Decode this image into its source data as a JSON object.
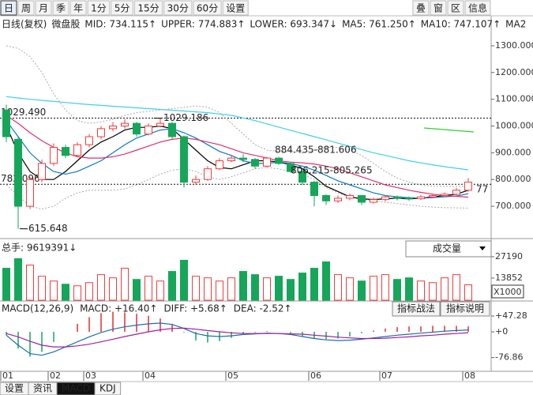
{
  "toolbar": {
    "periods": [
      "日",
      "周",
      "月",
      "季",
      "年",
      "1分",
      "5分",
      "15分",
      "30分",
      "60分",
      "设置"
    ],
    "right": [
      "叠",
      "窗",
      "区",
      "信息"
    ]
  },
  "tabs": [
    "设置",
    "资讯",
    "MACD",
    "KDJ"
  ],
  "chart_data": [
    {
      "type": "candlestick",
      "name": "日线(复权)",
      "symbol": "微盘股",
      "up_color": "#f03c3c",
      "down_color": "#16a65a",
      "categories": [
        "01",
        null,
        null,
        null,
        "02",
        null,
        null,
        "03",
        null,
        null,
        null,
        null,
        "04",
        null,
        null,
        null,
        null,
        null,
        null,
        "05",
        null,
        null,
        null,
        null,
        null,
        null,
        "06",
        null,
        null,
        null,
        null,
        null,
        "07",
        null,
        null,
        null,
        null,
        null,
        null,
        "08"
      ],
      "candles": {
        "open": [
          1060,
          950,
          700,
          800,
          860,
          920,
          890,
          930,
          960,
          990,
          1000,
          1010,
          970,
          1000,
          1010,
          960,
          790,
          800,
          840,
          870,
          880,
          875,
          850,
          880,
          860,
          830,
          790,
          740,
          720,
          730,
          740,
          715,
          725,
          735,
          730,
          728,
          735,
          740,
          745,
          760
        ],
        "high": [
          1080,
          960,
          810,
          875,
          935,
          930,
          940,
          970,
          1000,
          1015,
          1025,
          1015,
          1010,
          1029.186,
          1015,
          965,
          815,
          850,
          880,
          890,
          895,
          880,
          884.435,
          885,
          865,
          835,
          795,
          745,
          740,
          748,
          742,
          732,
          742,
          740,
          736,
          742,
          746,
          752,
          768,
          805
        ],
        "low": [
          940,
          615.648,
          690,
          790,
          850,
          880,
          885,
          920,
          950,
          980,
          990,
          960,
          965,
          995,
          950,
          770,
          780,
          795,
          835,
          865,
          865,
          840,
          845,
          855,
          825,
          780,
          700,
          705,
          712,
          722,
          705,
          710,
          718,
          722,
          720,
          724,
          730,
          735,
          740,
          755
        ],
        "close": [
          960,
          700,
          800,
          860,
          920,
          890,
          930,
          960,
          990,
          1000,
          1010,
          970,
          1000,
          1010,
          960,
          790,
          800,
          840,
          870,
          880,
          875,
          850,
          880,
          860,
          830,
          790,
          740,
          720,
          730,
          740,
          715,
          725,
          735,
          730,
          728,
          735,
          740,
          745,
          760,
          790
        ]
      },
      "indicators": [
        {
          "label": "MID: 734.115↑",
          "color": "#808080"
        },
        {
          "label": "UPPER: 774.883↑",
          "color": "#808080",
          "values": [
            1300,
            1290,
            1260,
            1200,
            1120,
            1060,
            1020,
            1010,
            1015,
            1025,
            1040,
            1050,
            1055,
            1060,
            1065,
            1070,
            1075,
            1070,
            1050,
            1010,
            970,
            930,
            910,
            905,
            905,
            900,
            910,
            920,
            920,
            910,
            890,
            860,
            830,
            805,
            790,
            780,
            775,
            774,
            774,
            775
          ]
        },
        {
          "label": "LOWER: 693.347↓",
          "color": "#808080",
          "values": [
            780,
            740,
            700,
            690,
            700,
            730,
            750,
            760,
            760,
            760,
            765,
            780,
            800,
            820,
            835,
            840,
            830,
            810,
            800,
            810,
            825,
            840,
            845,
            840,
            830,
            820,
            800,
            770,
            750,
            735,
            725,
            720,
            715,
            710,
            705,
            700,
            697,
            695,
            694,
            693
          ]
        },
        {
          "label": "MA5: 761.250↑",
          "color": "#000000",
          "values": [
            1000,
            900,
            830,
            800,
            800,
            830,
            870,
            910,
            940,
            960,
            985,
            995,
            995,
            1000,
            990,
            950,
            910,
            870,
            845,
            840,
            855,
            870,
            870,
            865,
            855,
            840,
            810,
            775,
            755,
            735,
            728,
            725,
            728,
            730,
            728,
            730,
            735,
            740,
            745,
            760
          ]
        },
        {
          "label": "MA10: 747.107↑",
          "color": "#0a7ac8",
          "values": [
            1020,
            960,
            900,
            860,
            830,
            820,
            830,
            850,
            870,
            900,
            930,
            955,
            970,
            985,
            990,
            975,
            955,
            930,
            905,
            890,
            870,
            860,
            860,
            865,
            860,
            850,
            835,
            815,
            795,
            780,
            765,
            750,
            740,
            735,
            732,
            730,
            732,
            735,
            738,
            747
          ]
        },
        {
          "label": "MA2",
          "color": "#e0306a",
          "values": [
            1040,
            1010,
            975,
            945,
            920,
            900,
            885,
            880,
            880,
            885,
            895,
            910,
            925,
            940,
            950,
            955,
            950,
            940,
            930,
            915,
            900,
            890,
            880,
            870,
            865,
            862,
            858,
            850,
            840,
            825,
            810,
            795,
            780,
            770,
            760,
            752,
            745,
            740,
            737,
            734
          ]
        }
      ],
      "long_ma": {
        "color": "#3fd0e8",
        "values": [
          1110,
          1105,
          1100,
          1096,
          1092,
          1088,
          1084,
          1080,
          1077,
          1074,
          1071,
          1068,
          1065,
          1062,
          1059,
          1056,
          1053,
          1050,
          1045,
          1040,
          1030,
          1020,
          1008,
          996,
          984,
          972,
          960,
          948,
          936,
          924,
          912,
          900,
          890,
          880,
          870,
          862,
          855,
          848,
          842,
          836
        ]
      },
      "levels": [
        {
          "value": 1029.49,
          "label": "1029.490"
        },
        {
          "value": 782.096,
          "label": "782.096"
        }
      ],
      "annotations": [
        "884.435-881.606",
        "806.215-805.265",
        "77"
      ],
      "ylim": [
        585,
        1353
      ],
      "yticks": [
        {
          "value": 700,
          "label": "700.000"
        },
        {
          "value": 800,
          "label": "800.000"
        },
        {
          "value": 900,
          "label": "900.000"
        },
        {
          "value": 1000,
          "label": "1000.000"
        },
        {
          "value": 1100,
          "label": "1100.000"
        },
        {
          "value": 1200,
          "label": "1200.000"
        },
        {
          "value": 1300,
          "label": "1300.000"
        }
      ]
    },
    {
      "type": "bar",
      "title": "总手: 9619391↓",
      "selector": "成交量",
      "unit": "X1000",
      "values": [
        20000,
        26000,
        22000,
        15000,
        12000,
        10000,
        9000,
        11000,
        16000,
        14000,
        20000,
        13000,
        15000,
        12000,
        18000,
        25000,
        15000,
        14000,
        12000,
        14000,
        18000,
        16000,
        14000,
        15000,
        13000,
        17000,
        20000,
        24000,
        16000,
        14000,
        12000,
        15000,
        16000,
        13000,
        14000,
        12000,
        11000,
        14000,
        16000,
        9619.391
      ],
      "ylim": [
        0,
        35590
      ],
      "yticks": [
        13852,
        27190
      ]
    },
    {
      "type": "macd",
      "title": "MACD(12,26,9)",
      "buttons": [
        "指标战法",
        "指标说明"
      ],
      "labels": [
        {
          "text": "MACD: +16.40↑",
          "color": "#e03030"
        },
        {
          "text": "DIFF: +5.68↑",
          "color": "#1060c0"
        },
        {
          "text": "DEA: -2.52↑",
          "color": "#a020a0"
        }
      ],
      "histogram": [
        -10,
        -50,
        -74,
        -60,
        -30,
        0,
        24,
        44,
        56,
        60,
        58,
        54,
        48,
        40,
        24,
        -2,
        -26,
        -32,
        -28,
        -18,
        -6,
        -2,
        2,
        0,
        -4,
        -14,
        -20,
        -22,
        -20,
        -14,
        -4,
        4,
        10,
        14,
        16,
        16,
        18,
        18,
        18,
        16.4
      ],
      "diff": [
        -10,
        -40,
        -65,
        -70,
        -60,
        -45,
        -30,
        -15,
        -2,
        8,
        15,
        20,
        24,
        26,
        22,
        10,
        -5,
        -12,
        -14,
        -12,
        -8,
        -6,
        -4,
        -5,
        -8,
        -14,
        -20,
        -24,
        -26,
        -25,
        -22,
        -18,
        -14,
        -10,
        -7,
        -4,
        -1,
        2,
        4,
        5.68
      ],
      "dea": [
        -5,
        -15,
        -28,
        -40,
        -45,
        -45,
        -42,
        -37,
        -30,
        -22,
        -14,
        -7,
        0,
        6,
        10,
        11,
        8,
        4,
        0,
        -3,
        -5,
        -5,
        -5,
        -5,
        -6,
        -7,
        -10,
        -13,
        -16,
        -18,
        -20,
        -20,
        -19,
        -17,
        -15,
        -12,
        -10,
        -7,
        -5,
        -2.52
      ],
      "pos_color": "#e03030",
      "neg_color": "#16a65a",
      "diff_color": "#1a6fb0",
      "dea_color": "#a020a0",
      "ylim": [
        -118,
        87.5
      ],
      "yticks": [
        {
          "value": 47.28,
          "label": "+47.28"
        },
        {
          "value": 0,
          "label": "+0"
        },
        -76.86
      ]
    }
  ]
}
